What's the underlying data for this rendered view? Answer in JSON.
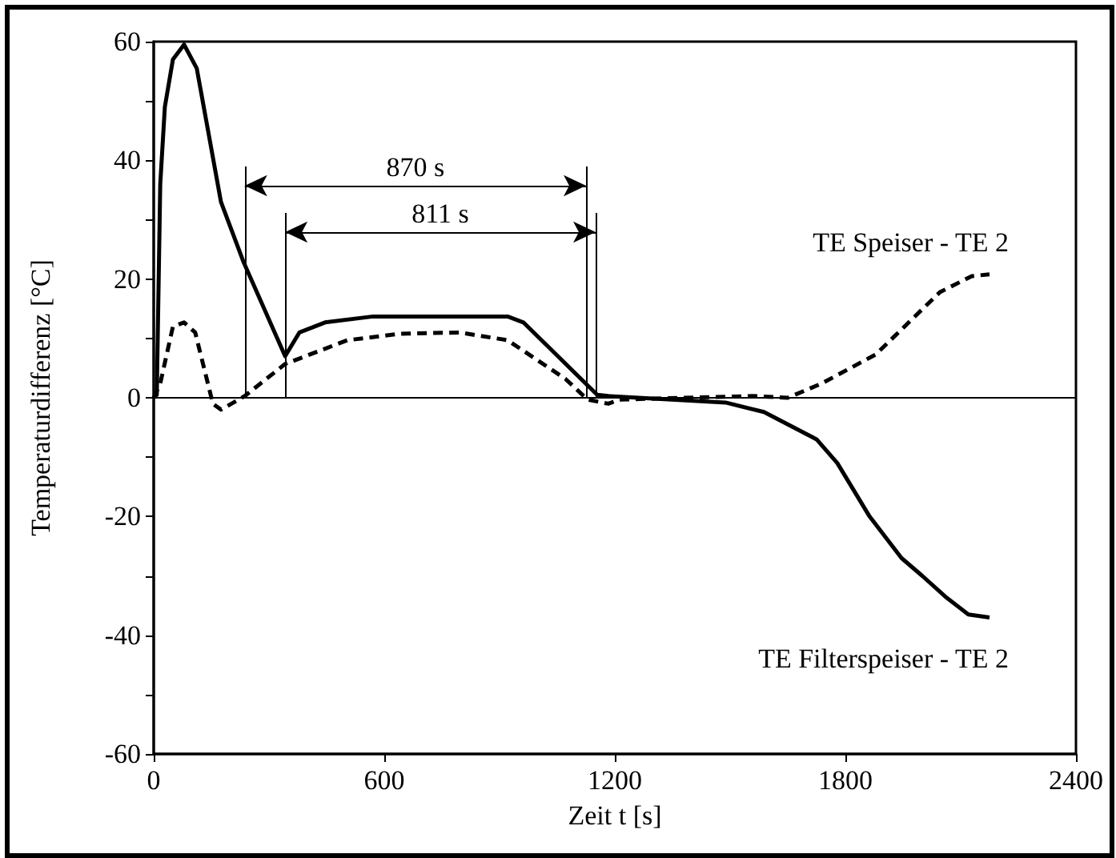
{
  "chart_data": {
    "type": "line",
    "xlabel": "Zeit t [s]",
    "ylabel": "Temperaturdifferenz [°C]",
    "xlim": [
      0,
      2400
    ],
    "xticks": [
      0,
      600,
      1200,
      1800,
      2400
    ],
    "ylim": [
      -60,
      60
    ],
    "yticks": [
      -60,
      {
        "value": -50,
        "label": null
      },
      -40,
      {
        "value": -30,
        "label": null
      },
      -20,
      {
        "value": -10,
        "label": null
      },
      0,
      {
        "value": 10,
        "label": null
      },
      20,
      {
        "value": 30,
        "label": null
      },
      40,
      {
        "value": 50,
        "label": null
      },
      60
    ],
    "grid": false,
    "legend": false,
    "marker": "none",
    "series": [
      {
        "name": "TE Filterspeiser - TE 2",
        "color": "#000000",
        "line_style": "solid",
        "x": [
          0,
          8,
          17,
          29,
          50,
          79,
          112,
          175,
          233,
          342,
          379,
          446,
          571,
          921,
          962,
          1154,
          1183,
          1488,
          1588,
          1725,
          1779,
          1863,
          1946,
          2000,
          2060,
          2120,
          2175
        ],
        "values": [
          0,
          0.5,
          36,
          49,
          57,
          59.5,
          55.5,
          33,
          23,
          7,
          11,
          12.7,
          13.7,
          13.7,
          12.7,
          0.5,
          0.3,
          -0.8,
          -2.4,
          -7,
          -11,
          -20,
          -27,
          -30,
          -33.5,
          -36.5,
          -37
        ]
      },
      {
        "name": "TE Speiser - TE 2",
        "color": "#000000",
        "line_style": "dashed",
        "x": [
          0,
          17,
          50,
          79,
          108,
          154,
          175,
          237,
          342,
          504,
          642,
          796,
          921,
          1071,
          1129,
          1183,
          1212,
          1558,
          1650,
          1738,
          1879,
          2046,
          2129,
          2175
        ],
        "values": [
          0,
          2.4,
          12,
          12.7,
          11,
          -1,
          -2,
          0.3,
          5.7,
          9.7,
          10.8,
          11,
          9.7,
          3.2,
          -0.3,
          -1,
          -0.3,
          0.3,
          0,
          2.4,
          7.3,
          17.8,
          20.5,
          20.8
        ]
      }
    ],
    "ref_lines": [
      {
        "axis": "y",
        "value": 0
      },
      {
        "axis": "x",
        "value": 237
      },
      {
        "axis": "x",
        "value": 1125
      },
      {
        "axis": "x",
        "value": 342
      },
      {
        "axis": "x",
        "value": 1150
      }
    ],
    "annotations": [
      "870 s",
      "811 s"
    ]
  }
}
